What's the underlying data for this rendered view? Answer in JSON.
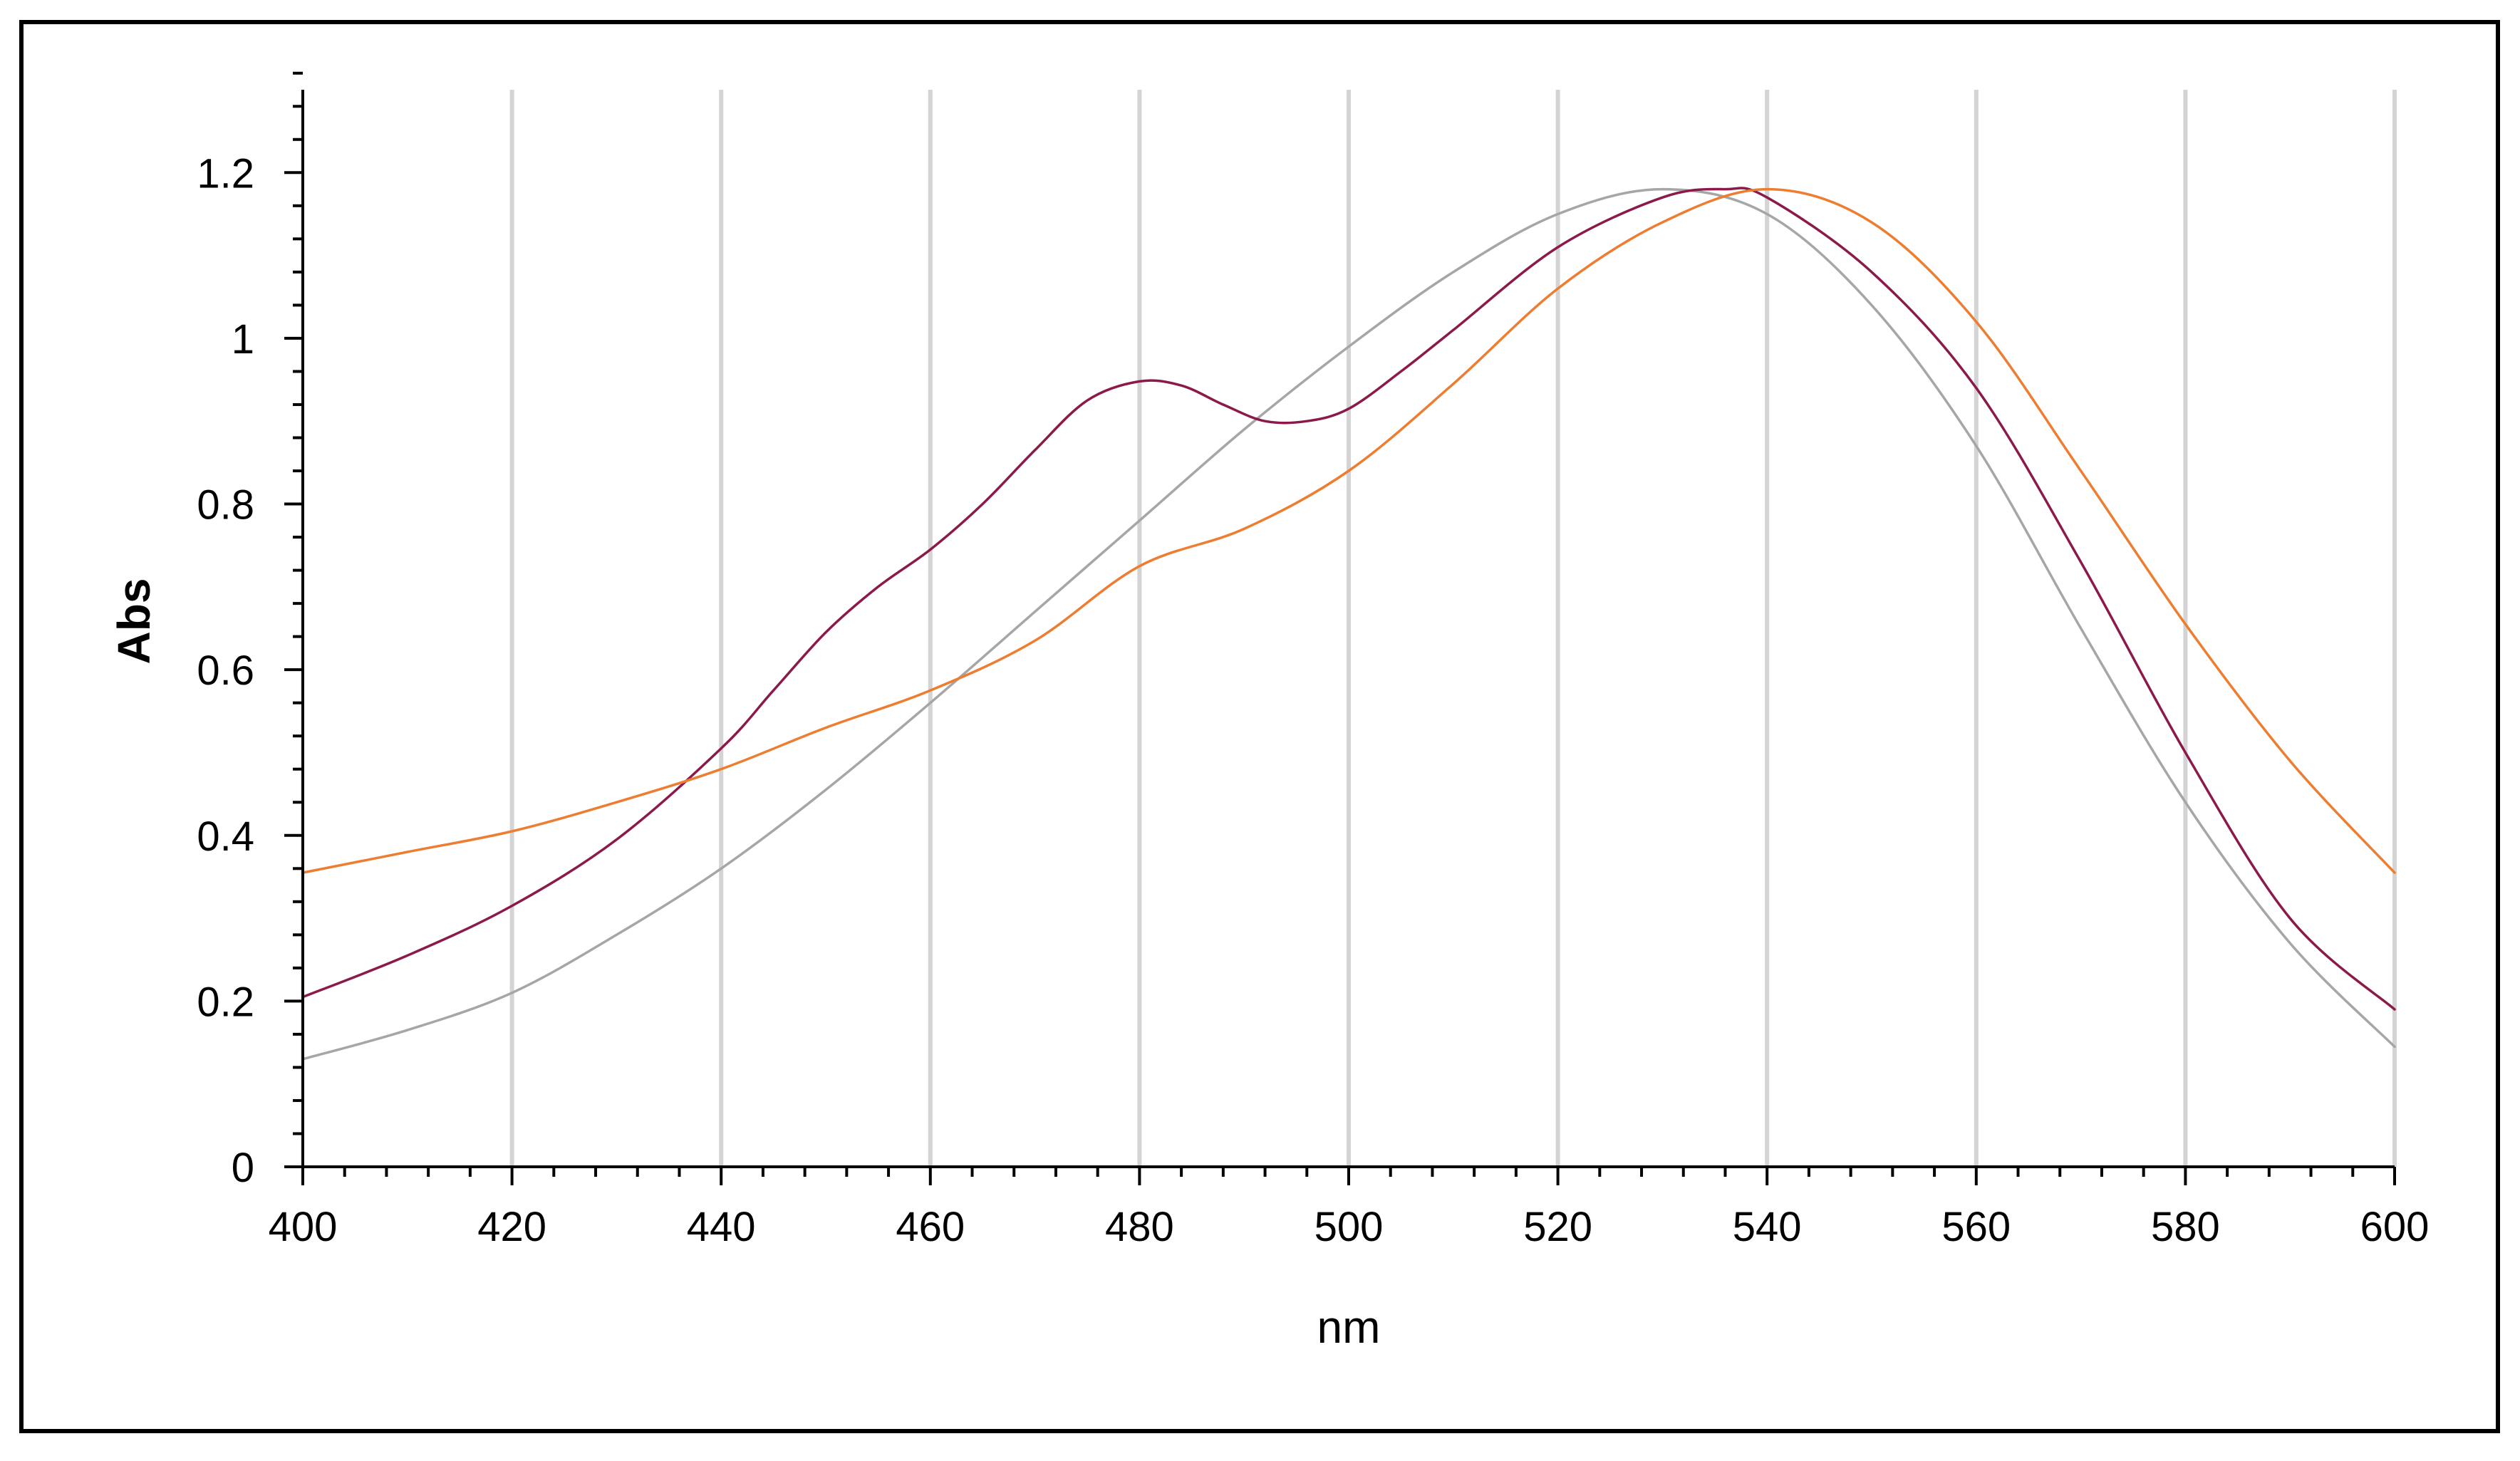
{
  "colors": {
    "frame": "#000000",
    "axis": "#000000",
    "grid": "#d4d4d4",
    "series_gray": "#a6a6a6",
    "series_maroon": "#8b1a4a",
    "series_orange": "#ed7d31"
  },
  "chart_data": {
    "type": "line",
    "xlabel": "nm",
    "ylabel": "Abs",
    "xlim": [
      400,
      600
    ],
    "ylim": [
      0,
      1.3
    ],
    "x_ticks": [
      "400",
      "420",
      "440",
      "460",
      "480",
      "500",
      "520",
      "540",
      "560",
      "580",
      "600"
    ],
    "x_tick_values": [
      400,
      420,
      440,
      460,
      480,
      500,
      520,
      540,
      560,
      580,
      600
    ],
    "y_ticks": [
      "0",
      "0.2",
      "0.4",
      "0.6",
      "0.8",
      "1",
      "1.2"
    ],
    "y_tick_values": [
      0,
      0.2,
      0.4,
      0.6,
      0.8,
      1.0,
      1.2
    ],
    "grid": "vertical",
    "legend": "none",
    "series": [
      {
        "color_key": "series_gray",
        "x": [
          400,
          410,
          420,
          430,
          440,
          450,
          460,
          470,
          480,
          490,
          500,
          510,
          520,
          530,
          540,
          550,
          560,
          570,
          580,
          590,
          600
        ],
        "y": [
          0.13,
          0.165,
          0.21,
          0.28,
          0.36,
          0.455,
          0.56,
          0.67,
          0.78,
          0.89,
          0.99,
          1.08,
          1.15,
          1.18,
          1.15,
          1.04,
          0.87,
          0.65,
          0.44,
          0.27,
          0.145
        ]
      },
      {
        "color_key": "series_maroon",
        "x": [
          400,
          410,
          420,
          430,
          440,
          445,
          450,
          455,
          460,
          465,
          470,
          475,
          480,
          484,
          488,
          492,
          496,
          500,
          505,
          510,
          520,
          530,
          536,
          540,
          550,
          560,
          570,
          580,
          590,
          600
        ],
        "y": [
          0.205,
          0.255,
          0.315,
          0.395,
          0.505,
          0.575,
          0.645,
          0.7,
          0.745,
          0.8,
          0.865,
          0.925,
          0.948,
          0.943,
          0.92,
          0.9,
          0.9,
          0.915,
          0.96,
          1.01,
          1.11,
          1.17,
          1.18,
          1.17,
          1.08,
          0.94,
          0.73,
          0.5,
          0.3,
          0.19
        ]
      },
      {
        "color_key": "series_orange",
        "x": [
          400,
          410,
          420,
          430,
          440,
          450,
          460,
          470,
          480,
          490,
          500,
          510,
          520,
          530,
          540,
          550,
          560,
          570,
          580,
          590,
          600
        ],
        "y": [
          0.355,
          0.38,
          0.405,
          0.44,
          0.48,
          0.53,
          0.575,
          0.635,
          0.725,
          0.77,
          0.84,
          0.945,
          1.06,
          1.14,
          1.18,
          1.14,
          1.02,
          0.84,
          0.655,
          0.49,
          0.355
        ]
      }
    ]
  }
}
